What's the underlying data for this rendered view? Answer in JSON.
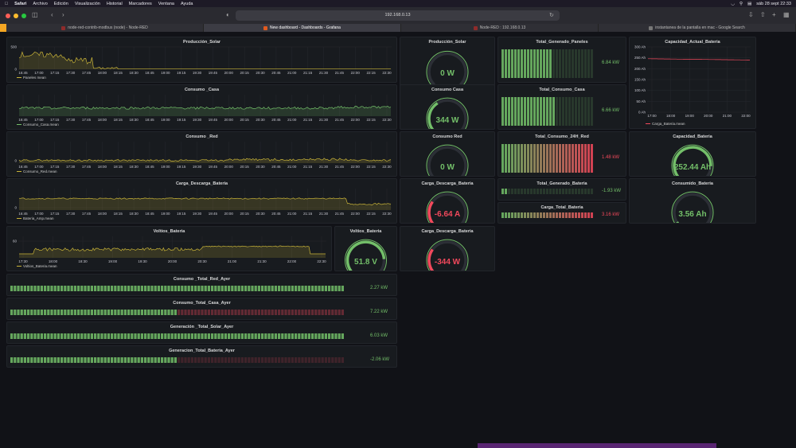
{
  "menubar": {
    "items": [
      "Safari",
      "Archivo",
      "Edición",
      "Visualización",
      "Historial",
      "Marcadores",
      "Ventana",
      "Ayuda"
    ],
    "datetime": "sáb 28 sept 22:33"
  },
  "browser": {
    "url": "192.168.0.13",
    "tabs": [
      {
        "label": "node-red-contrib-modbus (node) - Node-RED",
        "color": "#8f2b2b",
        "active": false
      },
      {
        "label": "New dashboard - Dashboards - Grafana",
        "color": "#e05a1f",
        "active": true
      },
      {
        "label": "Node-RED : 192.168.0.13",
        "color": "#8f2b2b",
        "active": false
      },
      {
        "label": "instantanea de la pantalla en mac - Google Search",
        "color": "#777777",
        "active": false
      }
    ]
  },
  "colors": {
    "green": "#73bf69",
    "yellow": "#c8b338",
    "red": "#f2495c",
    "orange": "#d36c3a"
  },
  "timeseries": {
    "produccion_solar": {
      "title": "Producción_Solar",
      "legend": "Paneles mean",
      "yticks": [
        "500",
        "0"
      ],
      "xticks": [
        "16:45",
        "17:00",
        "17:15",
        "17:30",
        "17:45",
        "18:00",
        "18:15",
        "18:30",
        "18:45",
        "19:00",
        "19:15",
        "19:30",
        "19:45",
        "20:00",
        "20:15",
        "20:30",
        "20:45",
        "21:00",
        "21:15",
        "21:30",
        "21:45",
        "22:00",
        "22:15",
        "22:30"
      ]
    },
    "consumo_casa": {
      "title": "Consumo _Casa",
      "legend": "Consumo_Casa.mean",
      "yticks": [],
      "xticks": [
        "16:45",
        "17:00",
        "17:15",
        "17:30",
        "17:45",
        "18:00",
        "18:15",
        "18:30",
        "18:45",
        "19:00",
        "19:15",
        "19:30",
        "19:45",
        "20:00",
        "20:15",
        "20:30",
        "20:45",
        "21:00",
        "21:15",
        "21:30",
        "21:45",
        "22:00",
        "22:15",
        "22:30"
      ]
    },
    "consumo_red": {
      "title": "Consumo _Red",
      "legend": "Consumo_Red.mean",
      "yticks": [
        "0"
      ],
      "xticks": [
        "16:45",
        "17:00",
        "17:15",
        "17:30",
        "17:45",
        "18:00",
        "18:15",
        "18:30",
        "18:45",
        "19:00",
        "19:15",
        "19:30",
        "19:45",
        "20:00",
        "20:15",
        "20:30",
        "20:45",
        "21:00",
        "21:15",
        "21:30",
        "21:45",
        "22:00",
        "22:15",
        "22:30"
      ]
    },
    "carga_descarga": {
      "title": "Carga_Descarga_Bateria",
      "legend": "Bateria_Amp.mean",
      "yticks": [
        "0"
      ],
      "xticks": [
        "16:45",
        "17:00",
        "17:15",
        "17:30",
        "17:45",
        "18:00",
        "18:15",
        "18:30",
        "18:45",
        "19:00",
        "19:15",
        "19:30",
        "19:45",
        "20:00",
        "20:15",
        "20:30",
        "20:45",
        "21:00",
        "21:15",
        "21:30",
        "21:45",
        "22:00",
        "22:15",
        "22:30"
      ]
    },
    "voltios_bateria": {
      "title": "Voltios_Bateria",
      "legend": "Voltios_Bateria.mean",
      "yticks": [
        "60"
      ],
      "xticks": [
        "17:30",
        "18:00",
        "18:30",
        "19:00",
        "19:30",
        "20:00",
        "20:30",
        "21:00",
        "21:30",
        "22:00",
        "22:30"
      ]
    },
    "capacidad_actual": {
      "title": "Capacidad_Actual_Bateria",
      "legend": "Carga_Bateria.mean",
      "yticks": [
        "300 Ah",
        "250 Ah",
        "200 Ah",
        "150 Ah",
        "100 Ah",
        "50 Ah",
        "0 Ah"
      ],
      "xticks": [
        "17:00",
        "18:00",
        "19:00",
        "20:00",
        "21:00",
        "22:00"
      ]
    }
  },
  "gauges": {
    "produccion_solar": {
      "title": "Producción_Solar",
      "value": "0 W",
      "fraction": 0.0,
      "color": "#73bf69"
    },
    "consumo_casa": {
      "title": "Consumo Casa",
      "value": "344 W",
      "fraction": 0.38,
      "color": "#73bf69"
    },
    "consumo_red": {
      "title": "Consumo Red",
      "value": "0 W",
      "fraction": 0.0,
      "color": "#73bf69"
    },
    "carga_descarga_a": {
      "title": "Carga_Descarga_Bateria",
      "value": "-6.64 A",
      "fraction": 0.3,
      "color": "#f2495c"
    },
    "voltios_bateria": {
      "title": "Voltios_Bateria",
      "value": "51.8 V",
      "fraction": 0.82,
      "color": "#73bf69"
    },
    "carga_descarga_w": {
      "title": "Carga_Descarga_Bateria",
      "value": "-344 W",
      "fraction": 0.3,
      "color": "#f2495c"
    },
    "capacidad_bateria": {
      "title": "Capacidad_Bateria",
      "value": "252.44 Ah",
      "fraction": 0.84,
      "color": "#73bf69"
    },
    "consumido_bateria": {
      "title": "Consumido_Bateria",
      "value": "3.56 Ah",
      "fraction": 0.05,
      "color": "#73bf69"
    }
  },
  "bargauges": {
    "total_generado_paneles": {
      "title": "Total_Generado_Paneles",
      "value": "6.84 kW",
      "fraction": 0.55,
      "mode": "green"
    },
    "total_consumo_casa": {
      "title": "Total_Consumo_Casa",
      "value": "6.66 kW",
      "fraction": 0.6,
      "mode": "green"
    },
    "total_consumo_24h_red": {
      "title": "Total_Consumo_24H_Red",
      "value": "1.48 kW",
      "fraction": 1.0,
      "mode": "gradient"
    },
    "total_generado_bateria": {
      "title": "Total_Generado_Bateria",
      "value": "-1.93 kW",
      "fraction": 0.06,
      "mode": "green"
    },
    "carga_total_bateria": {
      "title": "Carga_Total_Bateria",
      "value": "3.16 kW",
      "fraction": 1.0,
      "mode": "gradient"
    },
    "consumo_total_red_ayer": {
      "title": "Consumo _Total_Red_Ayer",
      "value": "2.27 kW",
      "fraction": 1.0,
      "mode": "green"
    },
    "consumo_total_casa_ayer": {
      "title": "Consumo_Total_Casa_Ayer",
      "value": "7.22 kW",
      "fraction": 1.0,
      "mode": "green-red"
    },
    "generacion_total_solar_ayer": {
      "title": "Generación _Total_Solar_Ayer",
      "value": "6.03 kW",
      "fraction": 1.0,
      "mode": "green"
    },
    "generacion_total_bateria_ayer": {
      "title": "Generacion_Total_Bateria_Ayer",
      "value": "-2.06 kW",
      "fraction": 0.5,
      "mode": "green-red"
    }
  }
}
